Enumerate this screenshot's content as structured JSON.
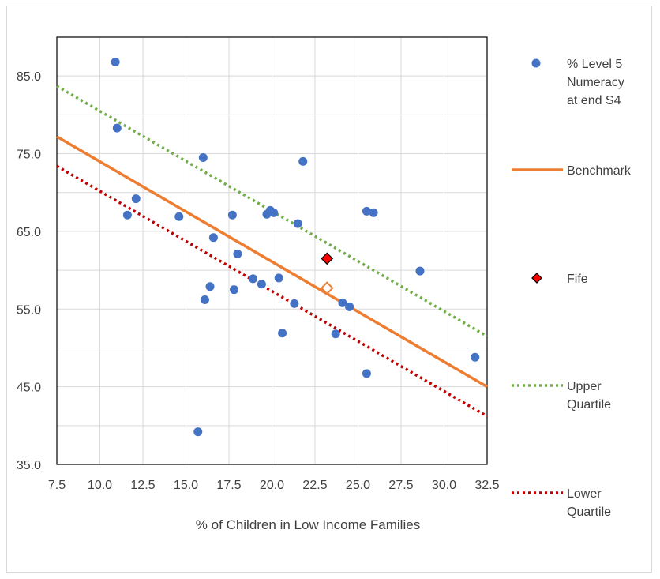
{
  "chart_data": {
    "type": "scatter",
    "xlabel": "% of Children in Low Income Families",
    "ylabel": "",
    "xlim": [
      7.5,
      32.5
    ],
    "ylim": [
      35.0,
      90.0
    ],
    "x_ticks": [
      "7.5",
      "10.0",
      "12.5",
      "15.0",
      "17.5",
      "20.0",
      "22.5",
      "25.0",
      "27.5",
      "30.0",
      "32.5"
    ],
    "y_ticks": [
      "35.0",
      "45.0",
      "55.0",
      "65.0",
      "75.0",
      "85.0"
    ],
    "grid": true,
    "legend_position": "right",
    "series": [
      {
        "name": "% Level 5 Numeracy at end S4",
        "legend_lines": [
          "% Level 5",
          "Numeracy",
          "at end S4"
        ],
        "kind": "scatter",
        "color": "#4472c4",
        "points": [
          [
            10.9,
            86.8
          ],
          [
            11.0,
            78.3
          ],
          [
            11.6,
            67.1
          ],
          [
            12.1,
            69.2
          ],
          [
            14.6,
            66.9
          ],
          [
            15.7,
            39.2
          ],
          [
            16.0,
            74.5
          ],
          [
            16.1,
            56.2
          ],
          [
            16.4,
            57.9
          ],
          [
            16.6,
            64.2
          ],
          [
            17.7,
            67.1
          ],
          [
            17.8,
            57.5
          ],
          [
            18.0,
            62.1
          ],
          [
            18.9,
            58.9
          ],
          [
            19.4,
            58.2
          ],
          [
            19.7,
            67.2
          ],
          [
            19.9,
            67.7
          ],
          [
            20.1,
            67.4
          ],
          [
            20.4,
            59.0
          ],
          [
            20.6,
            51.9
          ],
          [
            21.3,
            55.7
          ],
          [
            21.5,
            66.0
          ],
          [
            21.8,
            74.0
          ],
          [
            23.7,
            51.8
          ],
          [
            24.1,
            55.8
          ],
          [
            24.5,
            55.3
          ],
          [
            25.5,
            67.6
          ],
          [
            25.9,
            67.4
          ],
          [
            25.5,
            46.7
          ],
          [
            28.6,
            59.9
          ],
          [
            31.8,
            48.8
          ]
        ]
      },
      {
        "name": "Benchmark",
        "kind": "line",
        "color": "#ed7d31",
        "dash": "solid",
        "points": [
          [
            7.5,
            77.2
          ],
          [
            32.5,
            45.0
          ]
        ]
      },
      {
        "name": "Fife",
        "kind": "marker",
        "color": "#ff0000",
        "points": [
          [
            23.2,
            61.5
          ]
        ]
      },
      {
        "name": "Upper Quartile",
        "legend_lines": [
          "Upper",
          "Quartile"
        ],
        "kind": "line",
        "color": "#70ad47",
        "dash": "dotted",
        "points": [
          [
            7.5,
            83.7
          ],
          [
            32.5,
            51.5
          ]
        ]
      },
      {
        "name": "Lower Quartile",
        "legend_lines": [
          "Lower",
          "Quartile"
        ],
        "kind": "line",
        "color": "#c00000",
        "dash": "dotted",
        "points": [
          [
            7.5,
            73.4
          ],
          [
            32.5,
            41.2
          ]
        ]
      }
    ],
    "benchmark_marker": {
      "x": 23.2,
      "y": 57.7,
      "color": "#ed7d31"
    }
  }
}
